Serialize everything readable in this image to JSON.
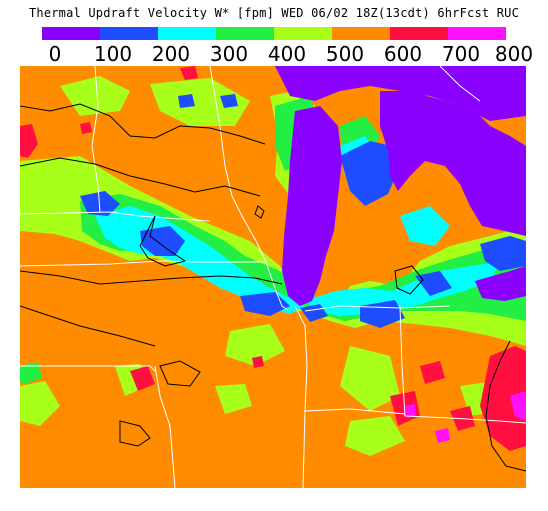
{
  "header": {
    "title": "Thermal Updraft Velocity W* [fpm]  WED 06/02 18Z(13cdt) 6hrFcst RUC"
  },
  "legend": {
    "bins": [
      {
        "label": "0",
        "color": "#8a00ff"
      },
      {
        "label": "100",
        "color": "#1e4dff"
      },
      {
        "label": "200",
        "color": "#00ffff"
      },
      {
        "label": "300",
        "color": "#22ee44"
      },
      {
        "label": "400",
        "color": "#a8ff1a"
      },
      {
        "label": "500",
        "color": "#ff8c00"
      },
      {
        "label": "600",
        "color": "#ff1040"
      },
      {
        "label": "700",
        "color": "#ff10ff"
      }
    ],
    "end_label": "800"
  },
  "map": {
    "colors": {
      "orange": "#ff8c00",
      "lime": "#a8ff1a",
      "green": "#22ee44",
      "cyan": "#00ffff",
      "blue": "#1e4dff",
      "purple": "#8a00ff",
      "red": "#ff1040",
      "magenta": "#ff10ff",
      "border": "#ffffff",
      "contour": "#000000"
    }
  }
}
